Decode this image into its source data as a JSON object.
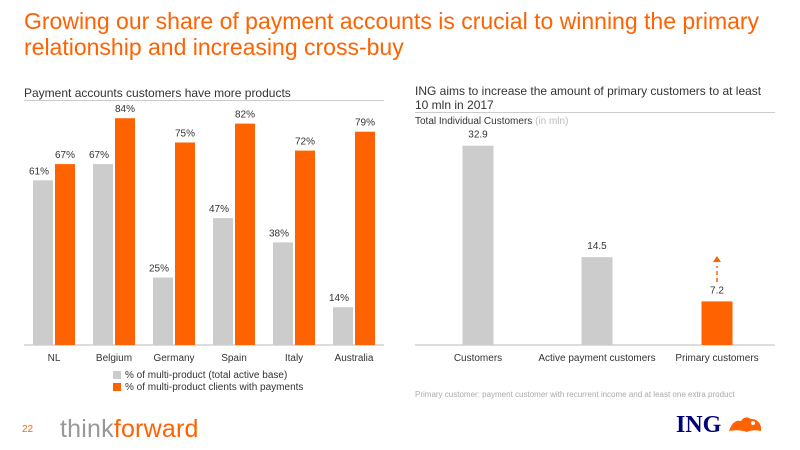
{
  "header": {
    "title": "Growing our share of payment accounts is crucial to winning the primary relationship and increasing cross-buy"
  },
  "left_panel": {
    "subtitle": "Payment accounts customers have more products",
    "legend": [
      {
        "label": "% of multi-product (total active base)",
        "color": "#cccccc"
      },
      {
        "label": "% of multi-product clients with payments",
        "color": "#ff6200"
      }
    ]
  },
  "right_panel": {
    "subtitle": "ING aims to increase the amount of primary customers to at least 10 mln in 2017",
    "series_label": "Total Individual Customers",
    "unit": "(in mln)",
    "footnote": "Primary customer: payment customer with recurrent income and at least one extra product"
  },
  "footer": {
    "page_number": "22",
    "brand_think": "think",
    "brand_forward": "forward",
    "logo_text": "ING"
  },
  "colors": {
    "accent": "#ff6200",
    "grey_bar": "#cccccc",
    "logo_blue": "#00007a"
  },
  "chart_data": [
    {
      "type": "bar",
      "categories": [
        "NL",
        "Belgium",
        "Germany",
        "Spain",
        "Italy",
        "Australia"
      ],
      "series": [
        {
          "name": "% of multi-product (total active base)",
          "values": [
            61,
            67,
            25,
            47,
            38,
            14
          ],
          "labels": [
            "61%",
            "67%",
            "25%",
            "47%",
            "38%",
            "14%"
          ],
          "color": "#cccccc"
        },
        {
          "name": "% of multi-product clients with payments",
          "values": [
            67,
            84,
            75,
            82,
            72,
            79
          ],
          "labels": [
            "67%",
            "84%",
            "75%",
            "82%",
            "72%",
            "79%"
          ],
          "color": "#ff6200"
        }
      ],
      "ylim": [
        0,
        100
      ],
      "grid": false,
      "legend": "bottom"
    },
    {
      "type": "bar",
      "categories": [
        "Customers",
        "Active payment customers",
        "Primary customers"
      ],
      "values": [
        32.9,
        14.5,
        7.2
      ],
      "labels": [
        "32.9",
        "14.5",
        "7.2"
      ],
      "colors": [
        "#cccccc",
        "#cccccc",
        "#ff6200"
      ],
      "ylim": [
        0,
        35
      ],
      "grid": false,
      "annotation": "dashed-arrow-up"
    }
  ]
}
